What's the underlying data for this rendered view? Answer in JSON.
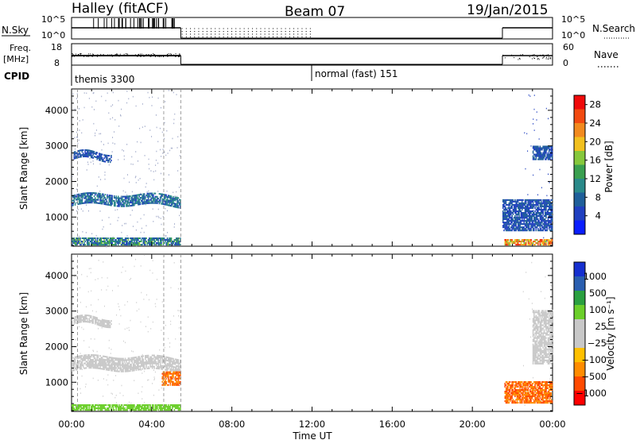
{
  "header": {
    "station": "Halley (fitACF)",
    "beam": "Beam 07",
    "date": "19/Jan/2015"
  },
  "top_panels": {
    "nsky_label": "N.Sky",
    "nsky_ticks": [
      "10^5",
      "10^0"
    ],
    "nsearch_label": "N.Search",
    "freq_label_1": "Freq.",
    "freq_label_2": "[MHz]",
    "freq_ticks": [
      "18",
      "8"
    ],
    "nave_label": "Nave",
    "nave_ticks": [
      "60",
      "0"
    ],
    "cpid_label": "CPID",
    "cpid_modes": [
      {
        "name": "themis 3300",
        "start": 0,
        "end": 12
      },
      {
        "name": "normal (fast) 151",
        "start": 12,
        "end": 24
      }
    ]
  },
  "colors": {
    "power_scale": [
      "#0a1eff",
      "#2040c0",
      "#1f5f9a",
      "#2a8a8a",
      "#3aa050",
      "#86c83c",
      "#f2c01e",
      "#f28a1e",
      "#f24a10",
      "#f00a0a"
    ],
    "velocity_scale": [
      "#ff0000",
      "#ff4a00",
      "#ff8c00",
      "#ffc000",
      "#c8c8c8",
      "#c8c8c8",
      "#6bcf2a",
      "#2aa040",
      "#2a5fb0",
      "#1630d0"
    ]
  },
  "chart_data": [
    {
      "type": "heatmap",
      "panel": "power",
      "title": "",
      "xlabel": "Time UT",
      "ylabel": "Slant Range [km]",
      "x_ticks": [
        "00:00",
        "04:00",
        "08:00",
        "12:00",
        "16:00",
        "20:00",
        "00:00"
      ],
      "xlim": [
        0,
        24
      ],
      "y_ticks": [
        "1000",
        "2000",
        "3000",
        "4000"
      ],
      "ylim": [
        180,
        4600
      ],
      "colorbar_label": "Power [dB]",
      "colorbar_ticks": [
        "4",
        "8",
        "12",
        "16",
        "20",
        "24",
        "28"
      ],
      "colorbar_range": [
        0,
        30
      ],
      "data_coverage_hours": [
        [
          0,
          5.5
        ],
        [
          21.5,
          24
        ]
      ],
      "features": [
        {
          "name": "main-echo-band",
          "t_start": 0,
          "t_end": 5.4,
          "range_km": [
            1300,
            1600
          ],
          "power_db": [
            4,
            12
          ]
        },
        {
          "name": "high-range-echo",
          "t_start": 0.1,
          "t_end": 2.0,
          "range_km": [
            2600,
            2800
          ],
          "power_db": [
            4,
            8
          ]
        },
        {
          "name": "near-range",
          "t_start": 0,
          "t_end": 5.4,
          "range_km": [
            200,
            400
          ],
          "power_db": [
            4,
            16
          ]
        },
        {
          "name": "late-near-range",
          "t_start": 21.6,
          "t_end": 24,
          "range_km": [
            200,
            350
          ],
          "power_db": [
            16,
            28
          ]
        },
        {
          "name": "late-mid-echo",
          "t_start": 21.5,
          "t_end": 24,
          "range_km": [
            600,
            1500
          ],
          "power_db": [
            4,
            8
          ]
        },
        {
          "name": "late-high-echo",
          "t_start": 23.0,
          "t_end": 24,
          "range_km": [
            2600,
            3000
          ],
          "power_db": [
            4,
            8
          ]
        }
      ]
    },
    {
      "type": "heatmap",
      "panel": "velocity",
      "title": "",
      "xlabel": "Time UT",
      "ylabel": "Slant Range [km]",
      "x_ticks": [
        "00:00",
        "04:00",
        "08:00",
        "12:00",
        "16:00",
        "20:00",
        "00:00"
      ],
      "xlim": [
        0,
        24
      ],
      "y_ticks": [
        "1000",
        "2000",
        "3000",
        "4000"
      ],
      "ylim": [
        180,
        4600
      ],
      "colorbar_label": "Velocity [m s⁻¹]",
      "colorbar_ticks": [
        "1000",
        "500",
        "100",
        "25",
        "−25",
        "−100",
        "−500",
        "−1000"
      ],
      "data_coverage_hours": [
        [
          0,
          5.5
        ],
        [
          21.5,
          24
        ]
      ],
      "features": [
        {
          "name": "main-echo-band",
          "t_start": 0,
          "t_end": 5.4,
          "range_km": [
            1300,
            1700
          ],
          "velocity_ms": [
            -25,
            25
          ]
        },
        {
          "name": "high-range-echo",
          "t_start": 0.1,
          "t_end": 2.0,
          "range_km": [
            2600,
            2800
          ],
          "velocity_ms": [
            -25,
            25
          ]
        },
        {
          "name": "orange-patch",
          "t_start": 4.5,
          "t_end": 5.4,
          "range_km": [
            900,
            1300
          ],
          "velocity_ms": [
            -500,
            -100
          ]
        },
        {
          "name": "near-range",
          "t_start": 0,
          "t_end": 5.4,
          "range_km": [
            200,
            350
          ],
          "velocity_ms": [
            25,
            100
          ]
        },
        {
          "name": "late-mid-echo",
          "t_start": 21.6,
          "t_end": 24,
          "range_km": [
            400,
            1000
          ],
          "velocity_ms": [
            -500,
            -100
          ]
        },
        {
          "name": "late-high-echo",
          "t_start": 23.0,
          "t_end": 24,
          "range_km": [
            1500,
            3000
          ],
          "velocity_ms": [
            -25,
            25
          ]
        }
      ]
    }
  ]
}
